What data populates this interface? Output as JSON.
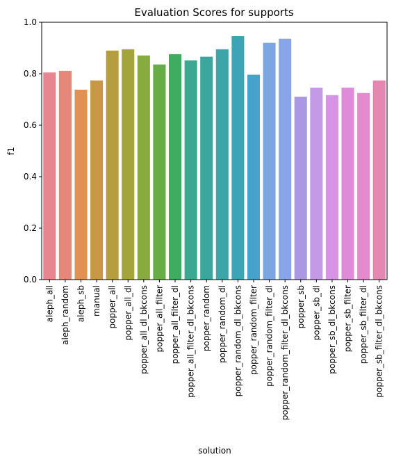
{
  "chart_data": {
    "type": "bar",
    "title": "Evaluation Scores for supports",
    "xlabel": "solution",
    "ylabel": "f1",
    "ylim": [
      0,
      1.0
    ],
    "yticks": [
      "0.0",
      "0.2",
      "0.4",
      "0.6",
      "0.8",
      "1.0"
    ],
    "grid": false,
    "legend": "none",
    "categories": [
      "aleph_all",
      "aleph_random",
      "aleph_sb",
      "manual",
      "popper_all",
      "popper_all_dl",
      "popper_all_dl_bkcons",
      "popper_all_filter",
      "popper_all_filter_dl",
      "popper_all_filter_dl_bkcons",
      "popper_random",
      "popper_random_dl",
      "popper_random_dl_bkcons",
      "popper_random_filter",
      "popper_random_filter_dl",
      "popper_random_filter_dl_bkcons",
      "popper_sb",
      "popper_sb_dl",
      "popper_sb_dl_bkcons",
      "popper_sb_filter",
      "popper_sb_filter_dl",
      "popper_sb_filter_dl_bkcons"
    ],
    "values": [
      0.805,
      0.811,
      0.738,
      0.774,
      0.89,
      0.895,
      0.871,
      0.836,
      0.876,
      0.852,
      0.866,
      0.895,
      0.946,
      0.796,
      0.92,
      0.936,
      0.711,
      0.746,
      0.717,
      0.746,
      0.725,
      0.774
    ],
    "colors": [
      "#e8868f",
      "#e5887a",
      "#df9254",
      "#c99847",
      "#b49e3f",
      "#a3a43c",
      "#88ab3f",
      "#67ad45",
      "#3ead60",
      "#3ca88f",
      "#3ba79c",
      "#3ba5a8",
      "#3da4b6",
      "#46a2c8",
      "#7ca6e1",
      "#89a5ea",
      "#ab98e3",
      "#c49ae6",
      "#d793e5",
      "#df8cd8",
      "#e48bce",
      "#e587b1"
    ]
  }
}
